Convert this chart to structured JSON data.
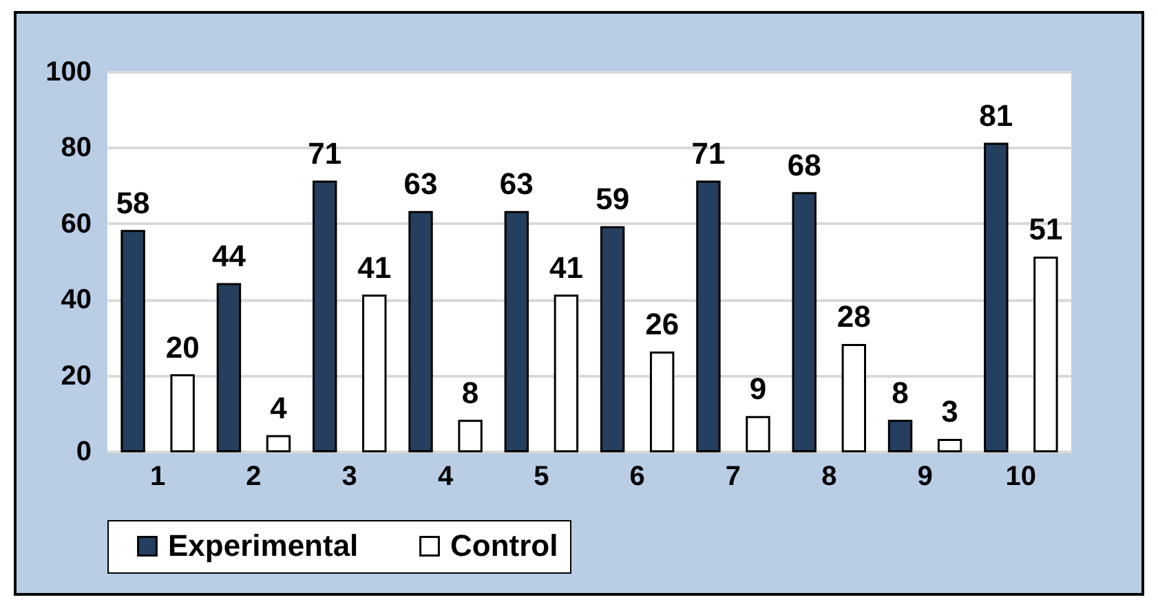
{
  "chart_data": {
    "type": "bar",
    "categories": [
      "1",
      "2",
      "3",
      "4",
      "5",
      "6",
      "7",
      "8",
      "9",
      "10"
    ],
    "series": [
      {
        "name": "Experimental",
        "color": "#243f60",
        "values": [
          58,
          44,
          71,
          63,
          63,
          59,
          71,
          68,
          8,
          81
        ]
      },
      {
        "name": "Control",
        "color": "#ffffff",
        "values": [
          20,
          4,
          41,
          8,
          41,
          26,
          9,
          28,
          3,
          51
        ]
      }
    ],
    "ylim": [
      0,
      100
    ],
    "yticks": [
      0,
      20,
      40,
      60,
      80,
      100
    ],
    "grid": "y",
    "legend": "bottom",
    "data_labels": true
  }
}
